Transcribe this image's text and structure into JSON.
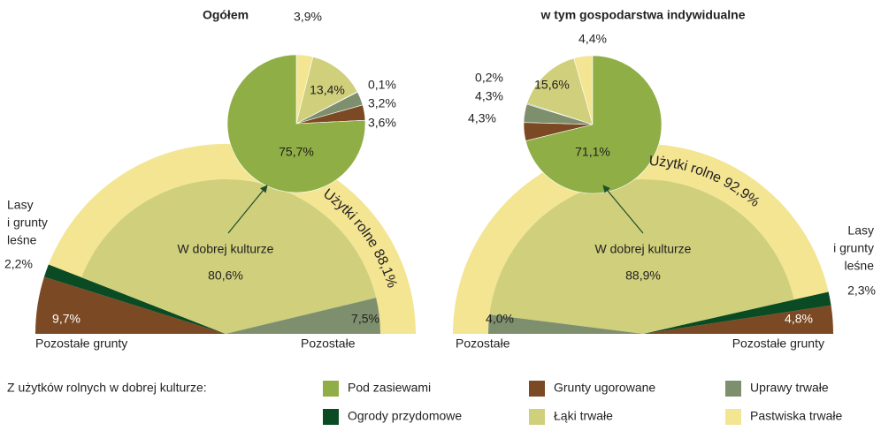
{
  "legend": {
    "title": "Z użytków rolnych w dobrej kulturze:",
    "categories": [
      "Pod zasiewami",
      "Grunty ugorowane",
      "Uprawy trwałe",
      "Ogrody przydomowe",
      "Łąki trwałe",
      "Pastwiska trwałe"
    ],
    "colors": [
      "#8fae45",
      "#7b4a24",
      "#7e8f6d",
      "#0b4b23",
      "#cfcf7c",
      "#f3e592"
    ]
  },
  "chart_data": [
    {
      "type": "pie",
      "title": "Ogółem",
      "direction": "clockwise",
      "values": [
        75.7,
        3.6,
        3.2,
        0.1,
        13.4,
        3.9
      ],
      "value_labels": [
        "75,7%",
        "3,6%",
        "3,2%",
        "0,1%",
        "13,4%",
        "3,9%"
      ]
    },
    {
      "type": "semicircle",
      "start": "left",
      "segments": [
        {
          "name": [
            "Pozostałe grunty"
          ],
          "value": 9.7,
          "value_label": "9,7%",
          "color": "#7b4a24"
        },
        {
          "name": [
            "Lasy",
            "i grunty",
            "leśne"
          ],
          "value": 2.2,
          "value_label": "2,2%",
          "color": "#0b4b23"
        },
        {
          "name": [
            "W dobrej kulturze"
          ],
          "value": 80.6,
          "value_label": "80,6%",
          "color": "#cfcf7c",
          "inner": true
        },
        {
          "name": [
            "Pozostałe"
          ],
          "value": 7.5,
          "value_label": "7,5%",
          "color": "#7e8f6d",
          "inner": true
        }
      ],
      "ring": {
        "label": "Użytki rolne",
        "value": 88.1,
        "value_label": "88,1%",
        "color": "#f3e592"
      }
    },
    {
      "type": "pie",
      "title": "w tym gospodarstwa indywidualne",
      "direction": "counterclockwise",
      "values": [
        71.1,
        4.3,
        4.3,
        0.2,
        15.6,
        4.4
      ],
      "value_labels": [
        "71,1%",
        "4,3%",
        "4,3%",
        "0,2%",
        "15,6%",
        "4,4%"
      ]
    },
    {
      "type": "semicircle",
      "start": "right",
      "segments": [
        {
          "name": [
            "Pozostałe grunty"
          ],
          "value": 4.8,
          "value_label": "4,8%",
          "color": "#7b4a24"
        },
        {
          "name": [
            "Lasy",
            "i grunty",
            "leśne"
          ],
          "value": 2.3,
          "value_label": "2,3%",
          "color": "#0b4b23"
        },
        {
          "name": [
            "W dobrej kulturze"
          ],
          "value": 88.9,
          "value_label": "88,9%",
          "color": "#cfcf7c",
          "inner": true
        },
        {
          "name": [
            "Pozostałe"
          ],
          "value": 4.0,
          "value_label": "4,0%",
          "color": "#7e8f6d",
          "inner": true
        }
      ],
      "ring": {
        "label": "Użytki rolne",
        "value": 92.9,
        "value_label": "92,9%",
        "color": "#f3e592"
      }
    }
  ]
}
